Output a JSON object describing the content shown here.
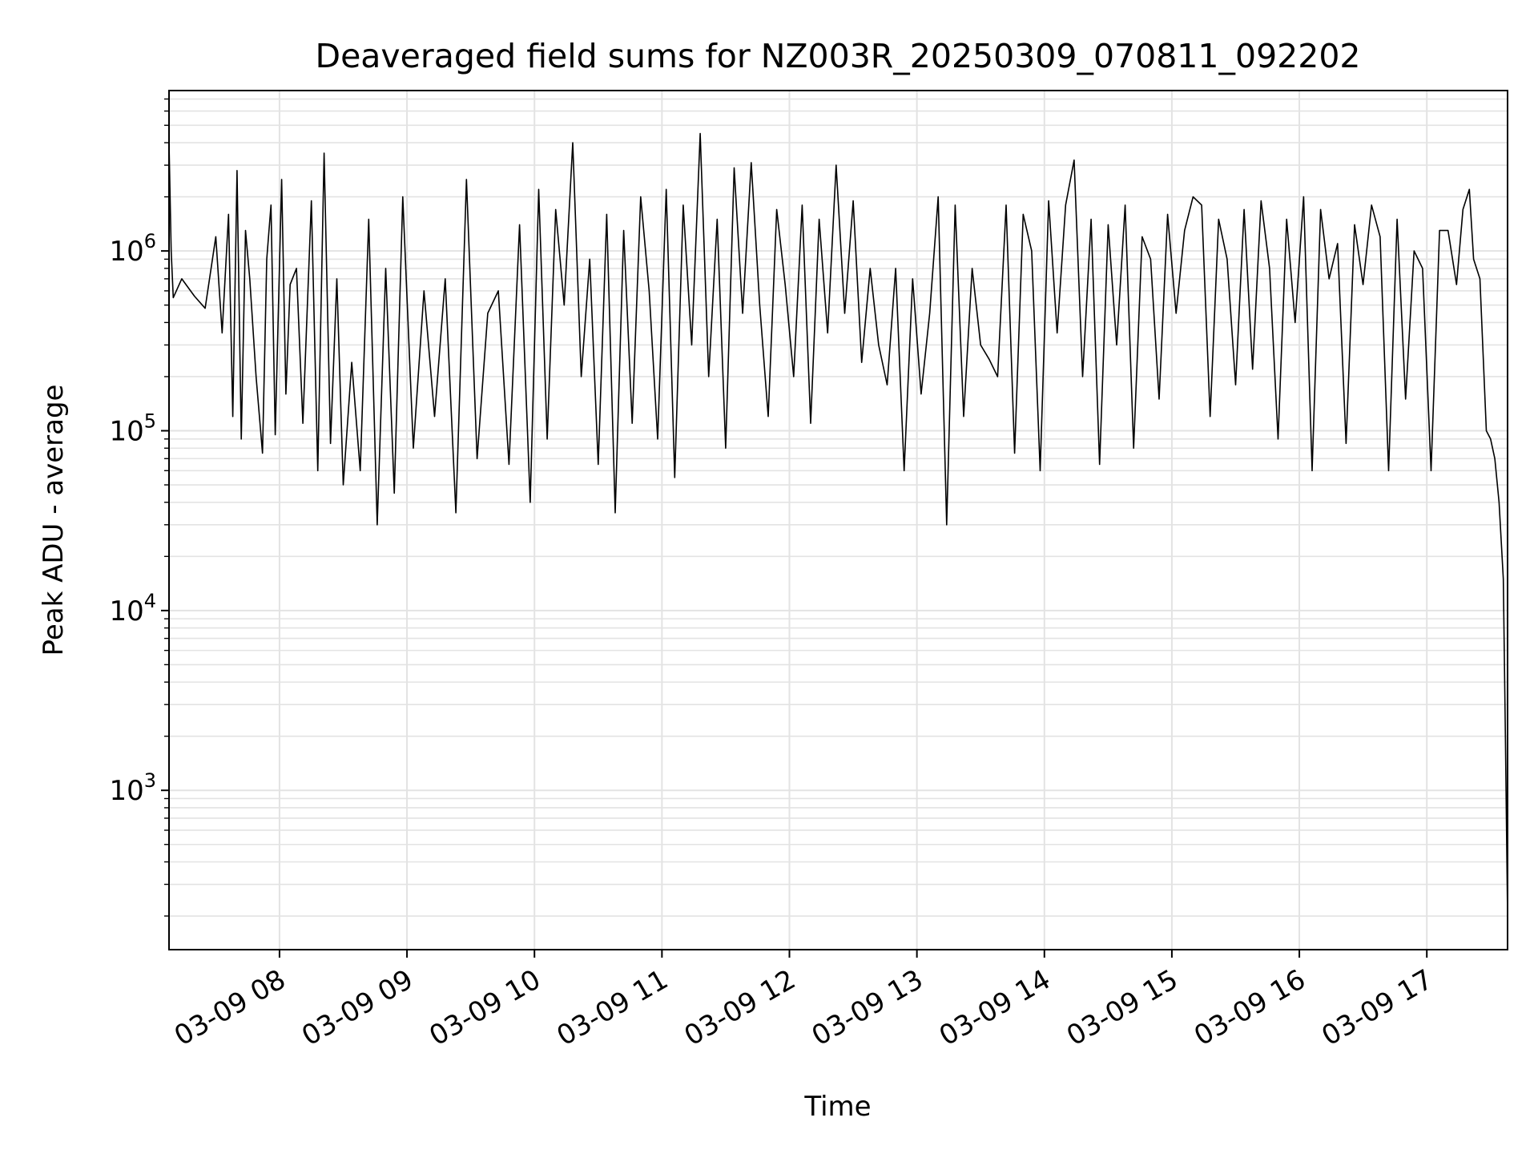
{
  "chart_data": {
    "type": "line",
    "title": "Deaveraged field sums for NZ003R_20250309_070811_092202",
    "xlabel": "Time",
    "ylabel": "Peak ADU - average",
    "yscale": "log",
    "ylim": [
      130,
      7800000
    ],
    "xlim": [
      "2025-03-09 07:08",
      "2025-03-09 17:38"
    ],
    "grid": true,
    "x_ticks": [
      {
        "value": "2025-03-09 08:00",
        "label": "03-09 08"
      },
      {
        "value": "2025-03-09 09:00",
        "label": "03-09 09"
      },
      {
        "value": "2025-03-09 10:00",
        "label": "03-09 10"
      },
      {
        "value": "2025-03-09 11:00",
        "label": "03-09 11"
      },
      {
        "value": "2025-03-09 12:00",
        "label": "03-09 12"
      },
      {
        "value": "2025-03-09 13:00",
        "label": "03-09 13"
      },
      {
        "value": "2025-03-09 14:00",
        "label": "03-09 14"
      },
      {
        "value": "2025-03-09 15:00",
        "label": "03-09 15"
      },
      {
        "value": "2025-03-09 16:00",
        "label": "03-09 16"
      },
      {
        "value": "2025-03-09 17:00",
        "label": "03-09 17"
      }
    ],
    "y_ticks": [
      {
        "value": 1000,
        "base": "10",
        "exp": "3"
      },
      {
        "value": 10000,
        "base": "10",
        "exp": "4"
      },
      {
        "value": 100000,
        "base": "10",
        "exp": "5"
      },
      {
        "value": 1000000,
        "base": "10",
        "exp": "6"
      }
    ],
    "series": [
      {
        "color": "#000000",
        "x": [
          "2025-03-09 07:08",
          "2025-03-09 07:09",
          "2025-03-09 07:10",
          "2025-03-09 07:14",
          "2025-03-09 07:20",
          "2025-03-09 07:25",
          "2025-03-09 07:30",
          "2025-03-09 07:33",
          "2025-03-09 07:36",
          "2025-03-09 07:38",
          "2025-03-09 07:40",
          "2025-03-09 07:42",
          "2025-03-09 07:44",
          "2025-03-09 07:46",
          "2025-03-09 07:49",
          "2025-03-09 07:52",
          "2025-03-09 07:54",
          "2025-03-09 07:56",
          "2025-03-09 07:58",
          "2025-03-09 08:01",
          "2025-03-09 08:03",
          "2025-03-09 08:05",
          "2025-03-09 08:08",
          "2025-03-09 08:11",
          "2025-03-09 08:15",
          "2025-03-09 08:18",
          "2025-03-09 08:21",
          "2025-03-09 08:24",
          "2025-03-09 08:27",
          "2025-03-09 08:30",
          "2025-03-09 08:34",
          "2025-03-09 08:38",
          "2025-03-09 08:42",
          "2025-03-09 08:46",
          "2025-03-09 08:50",
          "2025-03-09 08:54",
          "2025-03-09 08:58",
          "2025-03-09 09:03",
          "2025-03-09 09:08",
          "2025-03-09 09:13",
          "2025-03-09 09:18",
          "2025-03-09 09:23",
          "2025-03-09 09:28",
          "2025-03-09 09:33",
          "2025-03-09 09:38",
          "2025-03-09 09:43",
          "2025-03-09 09:48",
          "2025-03-09 09:53",
          "2025-03-09 09:58",
          "2025-03-09 10:02",
          "2025-03-09 10:06",
          "2025-03-09 10:10",
          "2025-03-09 10:14",
          "2025-03-09 10:18",
          "2025-03-09 10:22",
          "2025-03-09 10:26",
          "2025-03-09 10:30",
          "2025-03-09 10:34",
          "2025-03-09 10:38",
          "2025-03-09 10:42",
          "2025-03-09 10:46",
          "2025-03-09 10:50",
          "2025-03-09 10:54",
          "2025-03-09 10:58",
          "2025-03-09 11:02",
          "2025-03-09 11:06",
          "2025-03-09 11:10",
          "2025-03-09 11:14",
          "2025-03-09 11:18",
          "2025-03-09 11:22",
          "2025-03-09 11:26",
          "2025-03-09 11:30",
          "2025-03-09 11:34",
          "2025-03-09 11:38",
          "2025-03-09 11:42",
          "2025-03-09 11:46",
          "2025-03-09 11:50",
          "2025-03-09 11:54",
          "2025-03-09 11:58",
          "2025-03-09 12:02",
          "2025-03-09 12:06",
          "2025-03-09 12:10",
          "2025-03-09 12:14",
          "2025-03-09 12:18",
          "2025-03-09 12:22",
          "2025-03-09 12:26",
          "2025-03-09 12:30",
          "2025-03-09 12:34",
          "2025-03-09 12:38",
          "2025-03-09 12:42",
          "2025-03-09 12:46",
          "2025-03-09 12:50",
          "2025-03-09 12:54",
          "2025-03-09 12:58",
          "2025-03-09 13:02",
          "2025-03-09 13:06",
          "2025-03-09 13:10",
          "2025-03-09 13:14",
          "2025-03-09 13:18",
          "2025-03-09 13:22",
          "2025-03-09 13:26",
          "2025-03-09 13:30",
          "2025-03-09 13:34",
          "2025-03-09 13:38",
          "2025-03-09 13:42",
          "2025-03-09 13:46",
          "2025-03-09 13:50",
          "2025-03-09 13:54",
          "2025-03-09 13:58",
          "2025-03-09 14:02",
          "2025-03-09 14:06",
          "2025-03-09 14:10",
          "2025-03-09 14:14",
          "2025-03-09 14:18",
          "2025-03-09 14:22",
          "2025-03-09 14:26",
          "2025-03-09 14:30",
          "2025-03-09 14:34",
          "2025-03-09 14:38",
          "2025-03-09 14:42",
          "2025-03-09 14:46",
          "2025-03-09 14:50",
          "2025-03-09 14:54",
          "2025-03-09 14:58",
          "2025-03-09 15:02",
          "2025-03-09 15:06",
          "2025-03-09 15:10",
          "2025-03-09 15:14",
          "2025-03-09 15:18",
          "2025-03-09 15:22",
          "2025-03-09 15:26",
          "2025-03-09 15:30",
          "2025-03-09 15:34",
          "2025-03-09 15:38",
          "2025-03-09 15:42",
          "2025-03-09 15:46",
          "2025-03-09 15:50",
          "2025-03-09 15:54",
          "2025-03-09 15:58",
          "2025-03-09 16:02",
          "2025-03-09 16:06",
          "2025-03-09 16:10",
          "2025-03-09 16:14",
          "2025-03-09 16:18",
          "2025-03-09 16:22",
          "2025-03-09 16:26",
          "2025-03-09 16:30",
          "2025-03-09 16:34",
          "2025-03-09 16:38",
          "2025-03-09 16:42",
          "2025-03-09 16:46",
          "2025-03-09 16:50",
          "2025-03-09 16:54",
          "2025-03-09 16:58",
          "2025-03-09 17:02",
          "2025-03-09 17:06",
          "2025-03-09 17:10",
          "2025-03-09 17:14",
          "2025-03-09 17:17",
          "2025-03-09 17:20",
          "2025-03-09 17:22",
          "2025-03-09 17:25",
          "2025-03-09 17:28",
          "2025-03-09 17:30",
          "2025-03-09 17:32",
          "2025-03-09 17:34",
          "2025-03-09 17:36",
          "2025-03-09 17:37",
          "2025-03-09 17:38"
        ],
        "values": [
          4000000,
          1000000,
          550000,
          700000,
          560000,
          480000,
          1200000,
          350000,
          1600000,
          120000,
          2800000,
          90000,
          1300000,
          700000,
          200000,
          75000,
          900000,
          1800000,
          95000,
          2500000,
          160000,
          650000,
          800000,
          110000,
          1900000,
          60000,
          3500000,
          85000,
          700000,
          50000,
          240000,
          60000,
          1500000,
          30000,
          800000,
          45000,
          2000000,
          80000,
          600000,
          120000,
          700000,
          35000,
          2500000,
          70000,
          450000,
          600000,
          65000,
          1400000,
          40000,
          2200000,
          90000,
          1700000,
          500000,
          4000000,
          200000,
          900000,
          65000,
          1600000,
          35000,
          1300000,
          110000,
          2000000,
          600000,
          90000,
          2200000,
          55000,
          1800000,
          300000,
          4500000,
          200000,
          1500000,
          80000,
          2900000,
          450000,
          3100000,
          500000,
          120000,
          1700000,
          650000,
          200000,
          1800000,
          110000,
          1500000,
          350000,
          3000000,
          450000,
          1900000,
          240000,
          800000,
          300000,
          180000,
          800000,
          60000,
          700000,
          160000,
          450000,
          2000000,
          30000,
          1800000,
          120000,
          800000,
          300000,
          250000,
          200000,
          1800000,
          75000,
          1600000,
          1000000,
          60000,
          1900000,
          350000,
          1800000,
          3200000,
          200000,
          1500000,
          65000,
          1400000,
          300000,
          1800000,
          80000,
          1200000,
          900000,
          150000,
          1600000,
          450000,
          1300000,
          2000000,
          1800000,
          120000,
          1500000,
          900000,
          180000,
          1700000,
          220000,
          1900000,
          800000,
          90000,
          1500000,
          400000,
          2000000,
          60000,
          1700000,
          700000,
          1100000,
          85000,
          1400000,
          650000,
          1800000,
          1200000,
          60000,
          1500000,
          150000,
          1000000,
          800000,
          60000,
          1300000,
          1300000,
          650000,
          1700000,
          2200000,
          900000,
          700000,
          100000,
          90000,
          70000,
          40000,
          15000,
          2000,
          200
        ]
      }
    ]
  }
}
